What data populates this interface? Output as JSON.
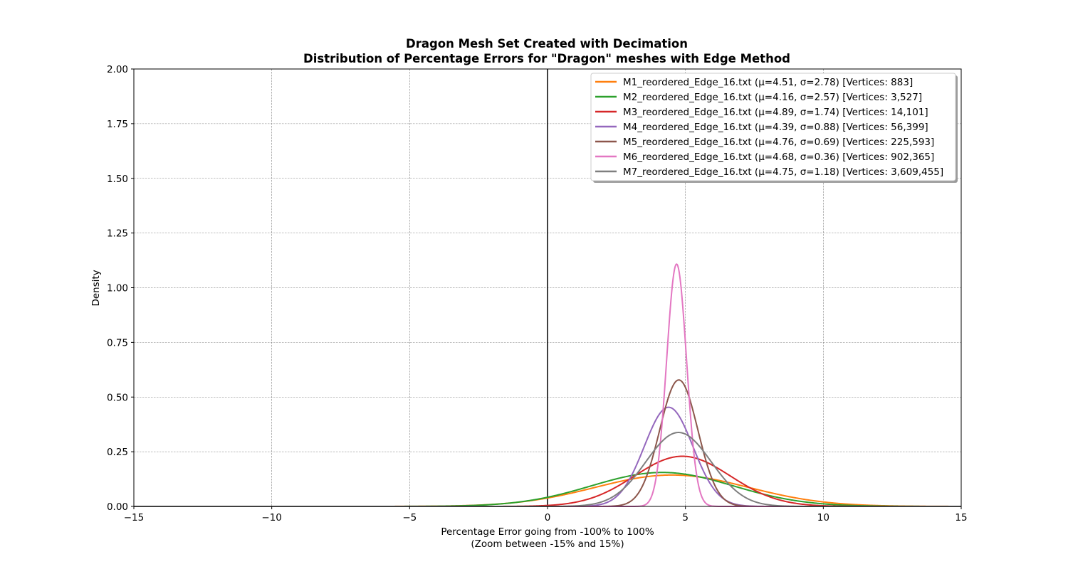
{
  "chart_data": {
    "type": "line",
    "title": "Dragon Mesh Set Created with Decimation",
    "subtitle": "Distribution of Percentage Errors for \"Dragon\" meshes with Edge Method",
    "xlabel": "Percentage Error going from -100% to 100%",
    "xlabel_sub": "(Zoom between -15% and 15%)",
    "ylabel": "Density",
    "xlim": [
      -15,
      15
    ],
    "ylim": [
      0,
      2
    ],
    "x_ticks": [
      -15,
      -10,
      -5,
      0,
      5,
      10,
      15
    ],
    "x_tick_labels": [
      "−15",
      "−10",
      "−5",
      "0",
      "5",
      "10",
      "15"
    ],
    "y_ticks": [
      0,
      0.25,
      0.5,
      0.75,
      1.0,
      1.25,
      1.5,
      1.75,
      2.0
    ],
    "y_tick_labels": [
      "0.00",
      "0.25",
      "0.50",
      "0.75",
      "1.00",
      "1.25",
      "1.50",
      "1.75",
      "2.00"
    ],
    "grid": true,
    "vertical_reference_line_x": 0,
    "legend_position": "top-right",
    "series": [
      {
        "name": "M1_reordered_Edge_16.txt (μ=4.51, σ=2.78) [Vertices: 883]",
        "mu": 4.51,
        "sigma": 2.78,
        "color": "#ff7f0e"
      },
      {
        "name": "M2_reordered_Edge_16.txt (μ=4.16, σ=2.57) [Vertices: 3,527]",
        "mu": 4.16,
        "sigma": 2.57,
        "color": "#2ca02c"
      },
      {
        "name": "M3_reordered_Edge_16.txt (μ=4.89, σ=1.74) [Vertices: 14,101]",
        "mu": 4.89,
        "sigma": 1.74,
        "color": "#d62728"
      },
      {
        "name": "M4_reordered_Edge_16.txt (μ=4.39, σ=0.88) [Vertices: 56,399]",
        "mu": 4.39,
        "sigma": 0.88,
        "color": "#9467bd"
      },
      {
        "name": "M5_reordered_Edge_16.txt (μ=4.76, σ=0.69) [Vertices: 225,593]",
        "mu": 4.76,
        "sigma": 0.69,
        "color": "#8c564b"
      },
      {
        "name": "M6_reordered_Edge_16.txt (μ=4.68, σ=0.36) [Vertices: 902,365]",
        "mu": 4.68,
        "sigma": 0.36,
        "color": "#e377c2"
      },
      {
        "name": "M7_reordered_Edge_16.txt (μ=4.75, σ=1.18) [Vertices: 3,609,455]",
        "mu": 4.75,
        "sigma": 1.18,
        "color": "#7f7f7f"
      }
    ]
  }
}
